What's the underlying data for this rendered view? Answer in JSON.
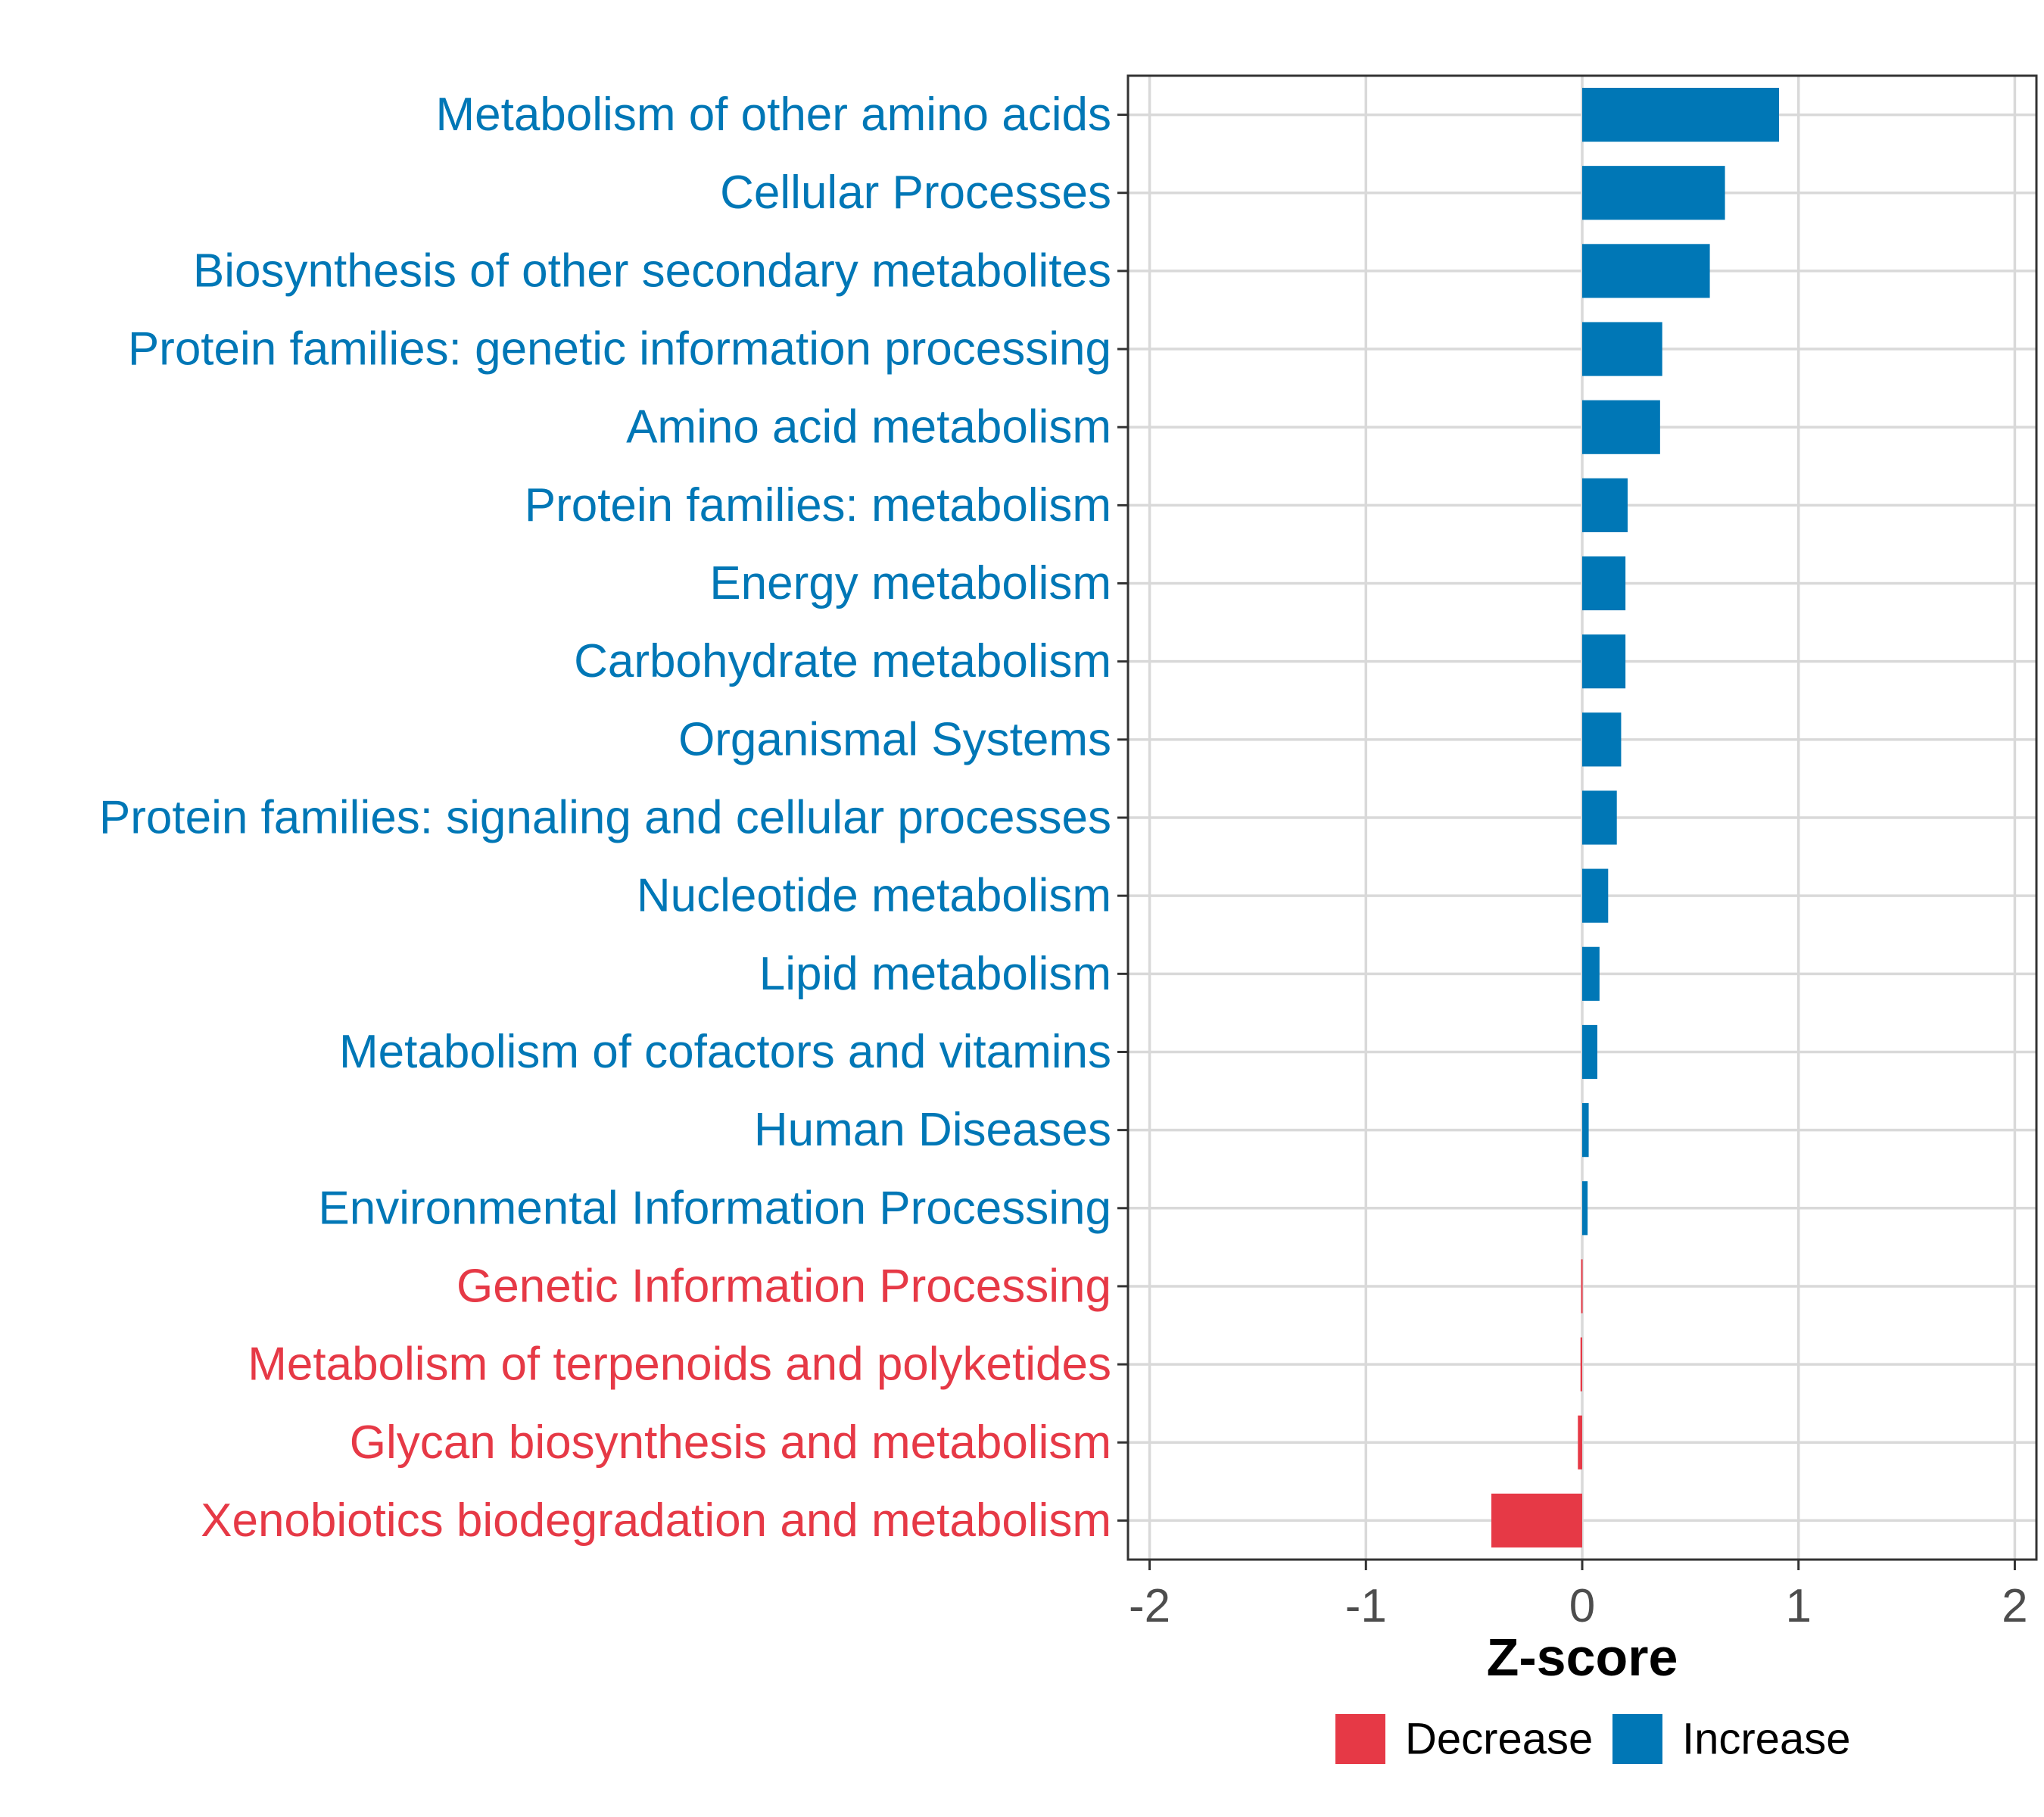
{
  "chart_data": {
    "type": "bar",
    "orientation": "horizontal",
    "xlabel": "Z-score",
    "xlim": [
      -2.1,
      2.1
    ],
    "xticks": [
      -2,
      -1,
      0,
      1,
      2
    ],
    "xtick_labels": [
      "-2",
      "-1",
      "0",
      "1",
      "2"
    ],
    "grid": true,
    "legend_position": "bottom",
    "legend": [
      {
        "name": "Decrease",
        "color": "#E63946"
      },
      {
        "name": "Increase",
        "color": "#0077B6"
      }
    ],
    "categories": [
      {
        "label": "Metabolism of other amino acids",
        "value": 0.91,
        "group": "Increase"
      },
      {
        "label": "Cellular Processes",
        "value": 0.66,
        "group": "Increase"
      },
      {
        "label": "Biosynthesis of other secondary metabolites",
        "value": 0.59,
        "group": "Increase"
      },
      {
        "label": "Protein families: genetic information processing",
        "value": 0.37,
        "group": "Increase"
      },
      {
        "label": "Amino acid metabolism",
        "value": 0.36,
        "group": "Increase"
      },
      {
        "label": "Protein families: metabolism",
        "value": 0.21,
        "group": "Increase"
      },
      {
        "label": "Energy metabolism",
        "value": 0.2,
        "group": "Increase"
      },
      {
        "label": "Carbohydrate metabolism",
        "value": 0.2,
        "group": "Increase"
      },
      {
        "label": "Organismal Systems",
        "value": 0.18,
        "group": "Increase"
      },
      {
        "label": "Protein families: signaling and cellular processes",
        "value": 0.16,
        "group": "Increase"
      },
      {
        "label": "Nucleotide metabolism",
        "value": 0.12,
        "group": "Increase"
      },
      {
        "label": "Lipid metabolism",
        "value": 0.08,
        "group": "Increase"
      },
      {
        "label": "Metabolism of cofactors and vitamins",
        "value": 0.07,
        "group": "Increase"
      },
      {
        "label": "Human Diseases",
        "value": 0.03,
        "group": "Increase"
      },
      {
        "label": "Environmental Information Processing",
        "value": 0.025,
        "group": "Increase"
      },
      {
        "label": "Genetic Information Processing",
        "value": -0.005,
        "group": "Decrease"
      },
      {
        "label": "Metabolism of terpenoids and polyketides",
        "value": -0.008,
        "group": "Decrease"
      },
      {
        "label": "Glycan biosynthesis and metabolism",
        "value": -0.02,
        "group": "Decrease"
      },
      {
        "label": "Xenobiotics biodegradation and metabolism",
        "value": -0.42,
        "group": "Decrease"
      }
    ]
  }
}
